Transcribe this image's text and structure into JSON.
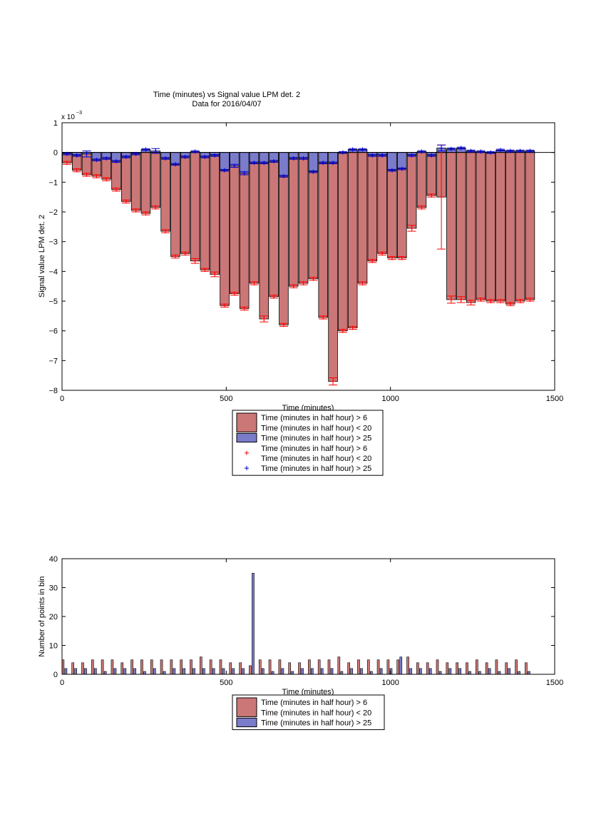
{
  "colors": {
    "bar_red": "#cc7777",
    "bar_blue": "#7b7bcc",
    "marker_red": "#ff0000",
    "marker_blue": "#0000cc"
  },
  "chart_data": [
    {
      "type": "bar",
      "title": "Time (minutes) vs Signal value LPM det. 2",
      "subtitle": "Data for 2016/04/07",
      "xlabel": "Time (minutes)",
      "ylabel": "Signal value LPM det. 2",
      "exponent_label": "x 10",
      "exponent_power": "−3",
      "xlim": [
        0,
        1500
      ],
      "ylim": [
        -8,
        1
      ],
      "y_scale_note": "values in units of 1e-3",
      "xticks": [
        0,
        500,
        1000,
        1500
      ],
      "xtick_labels": [
        "0",
        "500",
        "1000",
        "1500"
      ],
      "yticks": [
        1,
        0,
        -1,
        -2,
        -3,
        -4,
        -5,
        -6,
        -7,
        -8
      ],
      "ytick_labels": [
        "1",
        "0",
        "−1",
        "−2",
        "−3",
        "−4",
        "−5",
        "−6",
        "−7",
        "−8"
      ],
      "grid": false,
      "legend_position": "below",
      "x": [
        15,
        45,
        75,
        105,
        135,
        165,
        195,
        225,
        255,
        285,
        315,
        345,
        375,
        405,
        435,
        465,
        495,
        525,
        555,
        585,
        615,
        645,
        675,
        705,
        735,
        765,
        795,
        825,
        855,
        885,
        915,
        945,
        975,
        1005,
        1035,
        1065,
        1095,
        1125,
        1155,
        1185,
        1215,
        1245,
        1275,
        1305,
        1335,
        1365,
        1395,
        1425
      ],
      "series": [
        {
          "name": "Time (minutes in half hour) > 6\nTime (minutes in half hour) < 20",
          "color": "#cc7777",
          "values": [
            -0.35,
            -0.6,
            -0.75,
            -0.8,
            -0.9,
            -1.25,
            -1.65,
            -1.95,
            -2.05,
            -1.85,
            -2.65,
            -3.5,
            -3.4,
            -3.65,
            -3.95,
            -4.1,
            -5.15,
            -4.75,
            -5.25,
            -4.4,
            -5.6,
            -4.85,
            -5.8,
            -4.5,
            -4.4,
            -4.25,
            -5.55,
            -7.7,
            -6.0,
            -5.9,
            -4.4,
            -3.65,
            -3.4,
            -3.55,
            -3.55,
            -2.55,
            -1.85,
            -1.45,
            -1.5,
            -4.95,
            -4.95,
            -5.05,
            -4.95,
            -5.0,
            -5.0,
            -5.1,
            -5.0,
            -4.95
          ],
          "errors": [
            0.05,
            0.05,
            0.05,
            0.05,
            0.05,
            0.05,
            0.05,
            0.05,
            0.05,
            0.05,
            0.05,
            0.05,
            0.05,
            0.08,
            0.05,
            0.08,
            0.05,
            0.05,
            0.05,
            0.05,
            0.1,
            0.05,
            0.05,
            0.05,
            0.05,
            0.05,
            0.05,
            0.12,
            0.05,
            0.05,
            0.05,
            0.05,
            0.05,
            0.05,
            0.05,
            0.1,
            0.05,
            0.05,
            1.75,
            0.12,
            0.1,
            0.08,
            0.05,
            0.05,
            0.05,
            0.05,
            0.05,
            0.05
          ]
        },
        {
          "name": "Time (minutes in half hour) > 25",
          "color": "#7b7bcc",
          "values": [
            -0.05,
            -0.1,
            -0.05,
            -0.25,
            -0.2,
            -0.3,
            -0.15,
            -0.05,
            0.1,
            0.05,
            -0.2,
            -0.4,
            -0.15,
            0.03,
            -0.15,
            -0.1,
            -0.6,
            -0.45,
            -0.7,
            -0.35,
            -0.35,
            -0.3,
            -0.8,
            -0.2,
            -0.2,
            -0.65,
            -0.35,
            -0.35,
            0.0,
            0.1,
            0.1,
            -0.1,
            -0.1,
            -0.6,
            -0.55,
            -0.1,
            0.03,
            -0.1,
            0.15,
            0.12,
            0.15,
            0.05,
            0.03,
            0.0,
            0.08,
            0.05,
            0.05,
            0.05
          ],
          "errors": [
            0.03,
            0.03,
            0.1,
            0.03,
            0.03,
            0.03,
            0.03,
            0.03,
            0.03,
            0.08,
            0.03,
            0.03,
            0.03,
            0.03,
            0.03,
            0.03,
            0.03,
            0.05,
            0.05,
            0.03,
            0.03,
            0.03,
            0.03,
            0.03,
            0.03,
            0.03,
            0.03,
            0.03,
            0.03,
            0.03,
            0.03,
            0.03,
            0.03,
            0.03,
            0.03,
            0.03,
            0.03,
            0.03,
            0.1,
            0.03,
            0.03,
            0.03,
            0.03,
            0.03,
            0.03,
            0.03,
            0.03,
            0.03
          ]
        }
      ],
      "legend": [
        {
          "kind": "patch",
          "color": "#cc7777",
          "lines": [
            "Time (minutes in half hour) > 6",
            "Time (minutes in half hour) < 20"
          ]
        },
        {
          "kind": "patch",
          "color": "#7b7bcc",
          "lines": [
            "Time (minutes in half hour) > 25"
          ]
        },
        {
          "kind": "marker",
          "color": "#ff0000",
          "lines": [
            "Time (minutes in half hour) > 6",
            "Time (minutes in half hour) < 20"
          ]
        },
        {
          "kind": "marker",
          "color": "#0000cc",
          "lines": [
            "Time (minutes in half hour) > 25"
          ]
        }
      ]
    },
    {
      "type": "bar",
      "title": "",
      "xlabel": "Time (minutes)",
      "ylabel": "Number of points in bin",
      "xlim": [
        0,
        1500
      ],
      "ylim": [
        0,
        40
      ],
      "xticks": [
        0,
        500,
        1000,
        1500
      ],
      "xtick_labels": [
        "0",
        "500",
        "1000",
        "1500"
      ],
      "yticks": [
        0,
        10,
        20,
        30,
        40
      ],
      "ytick_labels": [
        "0",
        "10",
        "20",
        "30",
        "40"
      ],
      "grid": false,
      "legend_position": "below",
      "x": [
        15,
        45,
        75,
        105,
        135,
        165,
        195,
        225,
        255,
        285,
        315,
        345,
        375,
        405,
        435,
        465,
        495,
        525,
        555,
        585,
        615,
        645,
        675,
        705,
        735,
        765,
        795,
        825,
        855,
        885,
        915,
        945,
        975,
        1005,
        1035,
        1065,
        1095,
        1125,
        1155,
        1185,
        1215,
        1245,
        1275,
        1305,
        1335,
        1365,
        1395,
        1425
      ],
      "series": [
        {
          "name": "Time (minutes in half hour) > 6\nTime (minutes in half hour) < 20",
          "color": "#cc7777",
          "values": [
            5,
            4,
            4,
            5,
            5,
            5,
            4,
            5,
            5,
            5,
            5,
            5,
            5,
            5,
            6,
            5,
            5,
            4,
            4,
            3,
            5,
            5,
            5,
            4,
            4,
            5,
            5,
            5,
            6,
            4,
            5,
            5,
            5,
            5,
            5,
            6,
            4,
            4,
            5,
            4,
            4,
            4,
            5,
            4,
            5,
            4,
            5,
            4
          ]
        },
        {
          "name": "Time (minutes in half hour) > 25",
          "color": "#7b7bcc",
          "values": [
            2,
            2,
            2,
            2,
            1,
            2,
            2,
            2,
            1,
            2,
            1,
            2,
            2,
            2,
            2,
            2,
            2,
            2,
            2,
            35,
            2,
            1,
            2,
            1,
            2,
            2,
            2,
            2,
            1,
            2,
            2,
            1,
            2,
            2,
            6,
            2,
            2,
            2,
            1,
            2,
            2,
            1,
            1,
            2,
            1,
            2,
            1,
            1
          ]
        }
      ],
      "legend": [
        {
          "kind": "patch",
          "color": "#cc7777",
          "lines": [
            "Time (minutes in half hour) > 6",
            "Time (minutes in half hour) < 20"
          ]
        },
        {
          "kind": "patch",
          "color": "#7b7bcc",
          "lines": [
            "Time (minutes in half hour) > 25"
          ]
        }
      ]
    }
  ]
}
